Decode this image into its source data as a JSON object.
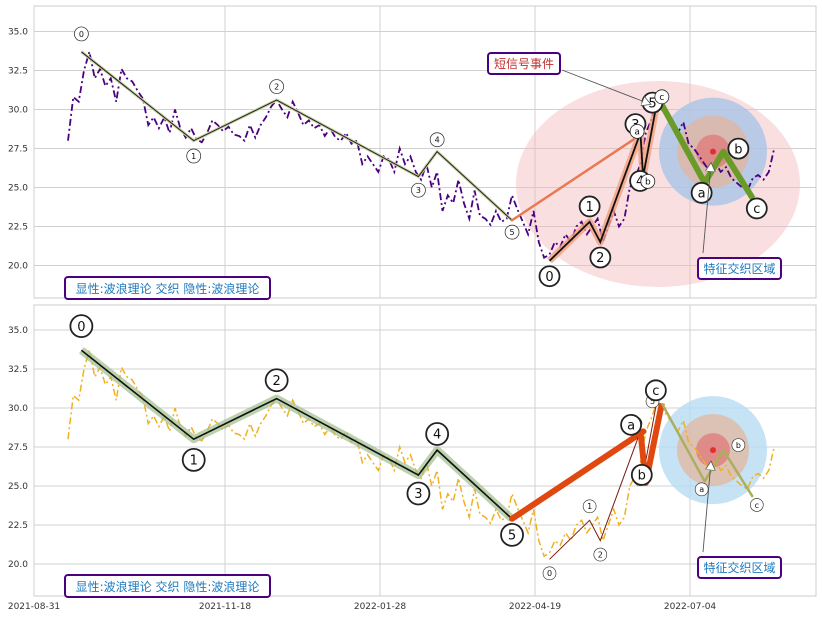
{
  "chart_data": [
    {
      "type": "line",
      "panel": "top",
      "x_dates": [
        "2021-08-31",
        "2021-11-18",
        "2022-01-28",
        "2022-04-19",
        "2022-07-04"
      ],
      "ylim": [
        18,
        36.5
      ],
      "y_ticks": [
        "35.0",
        "32.5",
        "30.0",
        "27.5",
        "25.0",
        "22.5",
        "20.0"
      ],
      "grid": true,
      "price_series": {
        "color": "#4b0082",
        "style": "dash-dot",
        "points": [
          [
            0,
            28.0
          ],
          [
            2,
            30.8
          ],
          [
            4,
            30.5
          ],
          [
            6,
            32.5
          ],
          [
            8,
            33.7
          ],
          [
            10,
            32.0
          ],
          [
            12,
            32.6
          ],
          [
            14,
            31.5
          ],
          [
            16,
            32.0
          ],
          [
            18,
            30.5
          ],
          [
            20,
            32.6
          ],
          [
            22,
            32.0
          ],
          [
            24,
            31.8
          ],
          [
            26,
            31.2
          ],
          [
            28,
            30.7
          ],
          [
            30,
            29.0
          ],
          [
            32,
            29.5
          ],
          [
            34,
            28.8
          ],
          [
            36,
            29.5
          ],
          [
            38,
            28.5
          ],
          [
            40,
            30.0
          ],
          [
            42,
            28.8
          ],
          [
            44,
            28.2
          ],
          [
            46,
            28.8
          ],
          [
            48,
            28.1
          ],
          [
            50,
            27.9
          ],
          [
            52,
            28.5
          ],
          [
            54,
            29.3
          ],
          [
            56,
            29.0
          ],
          [
            58,
            28.6
          ],
          [
            60,
            28.9
          ],
          [
            62,
            28.4
          ],
          [
            64,
            28.3
          ],
          [
            66,
            28.0
          ],
          [
            68,
            29.0
          ],
          [
            70,
            28.2
          ],
          [
            72,
            29.0
          ],
          [
            74,
            29.5
          ],
          [
            76,
            30.2
          ],
          [
            78,
            30.6
          ],
          [
            80,
            30.0
          ],
          [
            82,
            29.5
          ],
          [
            84,
            30.5
          ],
          [
            86,
            29.8
          ],
          [
            88,
            29.0
          ],
          [
            90,
            29.3
          ],
          [
            92,
            28.8
          ],
          [
            94,
            29.0
          ],
          [
            96,
            28.3
          ],
          [
            98,
            28.8
          ],
          [
            100,
            28.2
          ],
          [
            102,
            28.0
          ],
          [
            104,
            28.5
          ],
          [
            106,
            27.8
          ],
          [
            108,
            28.0
          ],
          [
            110,
            26.5
          ],
          [
            112,
            27.0
          ],
          [
            114,
            26.5
          ],
          [
            116,
            26.0
          ],
          [
            118,
            27.0
          ],
          [
            120,
            26.8
          ],
          [
            122,
            26.0
          ],
          [
            124,
            27.5
          ],
          [
            126,
            26.5
          ],
          [
            128,
            27.0
          ],
          [
            130,
            26.0
          ],
          [
            132,
            25.5
          ],
          [
            134,
            26.5
          ],
          [
            136,
            25.0
          ],
          [
            138,
            26.0
          ],
          [
            140,
            23.5
          ],
          [
            142,
            24.5
          ],
          [
            144,
            24.0
          ],
          [
            146,
            25.5
          ],
          [
            148,
            24.0
          ],
          [
            150,
            23.0
          ],
          [
            152,
            24.8
          ],
          [
            154,
            23.2
          ],
          [
            156,
            23.0
          ],
          [
            158,
            22.6
          ],
          [
            160,
            23.5
          ],
          [
            162,
            22.8
          ],
          [
            164,
            23.0
          ],
          [
            166,
            24.5
          ],
          [
            168,
            23.6
          ],
          [
            170,
            22.8
          ],
          [
            172,
            22.0
          ],
          [
            174,
            23.5
          ],
          [
            176,
            21.5
          ],
          [
            178,
            20.5
          ],
          [
            180,
            20.7
          ],
          [
            182,
            21.5
          ],
          [
            184,
            21.2
          ],
          [
            186,
            22.0
          ],
          [
            188,
            21.5
          ],
          [
            190,
            22.5
          ],
          [
            192,
            22.8
          ],
          [
            194,
            22.0
          ],
          [
            196,
            22.5
          ],
          [
            198,
            23.0
          ],
          [
            200,
            21.5
          ],
          [
            202,
            22.5
          ],
          [
            204,
            23.5
          ],
          [
            206,
            22.5
          ],
          [
            208,
            23.0
          ],
          [
            210,
            25.0
          ],
          [
            212,
            25.6
          ],
          [
            214,
            26.5
          ],
          [
            216,
            28.5
          ],
          [
            218,
            29.3
          ],
          [
            220,
            30.3
          ],
          [
            222,
            30.0
          ],
          [
            224,
            29.5
          ],
          [
            226,
            29.0
          ],
          [
            228,
            28.5
          ],
          [
            230,
            29.2
          ],
          [
            232,
            27.8
          ],
          [
            234,
            27.5
          ],
          [
            236,
            27.0
          ],
          [
            238,
            26.5
          ],
          [
            240,
            26.0
          ],
          [
            242,
            26.6
          ],
          [
            244,
            26.0
          ],
          [
            246,
            26.3
          ],
          [
            248,
            25.6
          ],
          [
            250,
            25.3
          ],
          [
            252,
            25.0
          ],
          [
            254,
            24.8
          ],
          [
            256,
            25.6
          ],
          [
            258,
            25.8
          ],
          [
            260,
            25.5
          ],
          [
            262,
            26.0
          ],
          [
            264,
            27.5
          ]
        ]
      },
      "wave_labels": [
        {
          "label": "0",
          "x": 5,
          "y": 33.7
        },
        {
          "label": "1",
          "x": 47,
          "y": 28.0
        },
        {
          "label": "2",
          "x": 78,
          "y": 30.6
        },
        {
          "label": "3",
          "x": 131,
          "y": 25.7
        },
        {
          "label": "4",
          "x": 138,
          "y": 27.3
        },
        {
          "label": "5",
          "x": 166,
          "y": 22.9
        }
      ],
      "sub_wave_labels": [
        {
          "label": "0",
          "x": 180,
          "y": 20.3
        },
        {
          "label": "1",
          "x": 195,
          "y": 22.8
        },
        {
          "label": "2",
          "x": 199,
          "y": 21.5
        },
        {
          "label": "3",
          "x": 214,
          "y": 28.5
        },
        {
          "label": "4",
          "x": 215,
          "y": 25.7
        },
        {
          "label": "5",
          "x": 220,
          "y": 30.3
        }
      ],
      "abc_labels": [
        {
          "label": "a",
          "x": 212,
          "y": 28.6
        },
        {
          "label": "b",
          "x": 216,
          "y": 25.2
        },
        {
          "label": "c",
          "x": 222,
          "y": 30.3
        },
        {
          "label": "a",
          "x": 238,
          "y": 25.3
        },
        {
          "label": "b",
          "x": 245,
          "y": 27.3
        },
        {
          "label": "c",
          "x": 256,
          "y": 24.3
        }
      ],
      "annotations": [
        "短信号事件",
        "特征交织区域"
      ],
      "legend_box": "显性:波浪理论 交织 隐性:波浪理论",
      "legend_placement": "bottom-left"
    },
    {
      "type": "line",
      "panel": "bottom",
      "x_dates": [
        "2021-08-31",
        "2021-11-18",
        "2022-01-28",
        "2022-04-19",
        "2022-07-04"
      ],
      "ylim": [
        18,
        36.5
      ],
      "y_ticks": [
        "35.0",
        "32.5",
        "30.0",
        "27.5",
        "25.0",
        "22.5",
        "20.0"
      ],
      "grid": true,
      "price_series": {
        "color": "#f0b020",
        "style": "dash-dot",
        "same_as_top": true
      },
      "wave_labels": [
        {
          "label": "0",
          "x": 5,
          "y": 33.7
        },
        {
          "label": "1",
          "x": 47,
          "y": 28.0
        },
        {
          "label": "2",
          "x": 78,
          "y": 30.6
        },
        {
          "label": "3",
          "x": 131,
          "y": 25.7
        },
        {
          "label": "4",
          "x": 138,
          "y": 27.3
        },
        {
          "label": "5",
          "x": 166,
          "y": 22.9
        }
      ],
      "sub_wave_labels": [
        {
          "label": "0",
          "x": 180,
          "y": 20.3
        },
        {
          "label": "1",
          "x": 195,
          "y": 22.8
        },
        {
          "label": "2",
          "x": 199,
          "y": 21.5
        },
        {
          "label": "3",
          "x": 214,
          "y": 28.5
        },
        {
          "label": "4",
          "x": 215,
          "y": 25.7
        },
        {
          "label": "5",
          "x": 220,
          "y": 30.3
        }
      ],
      "abc_labels": [
        {
          "label": "a",
          "x": 212,
          "y": 28.6
        },
        {
          "label": "b",
          "x": 216,
          "y": 25.2
        },
        {
          "label": "c",
          "x": 222,
          "y": 30.3
        },
        {
          "label": "a",
          "x": 238,
          "y": 25.3
        },
        {
          "label": "b",
          "x": 245,
          "y": 27.3
        },
        {
          "label": "c",
          "x": 256,
          "y": 24.3
        }
      ],
      "annotations": [
        "特征交织区域"
      ],
      "legend_box": "显性:波浪理论 交织 隐性:波浪理论",
      "legend_placement": "bottom-left"
    }
  ]
}
